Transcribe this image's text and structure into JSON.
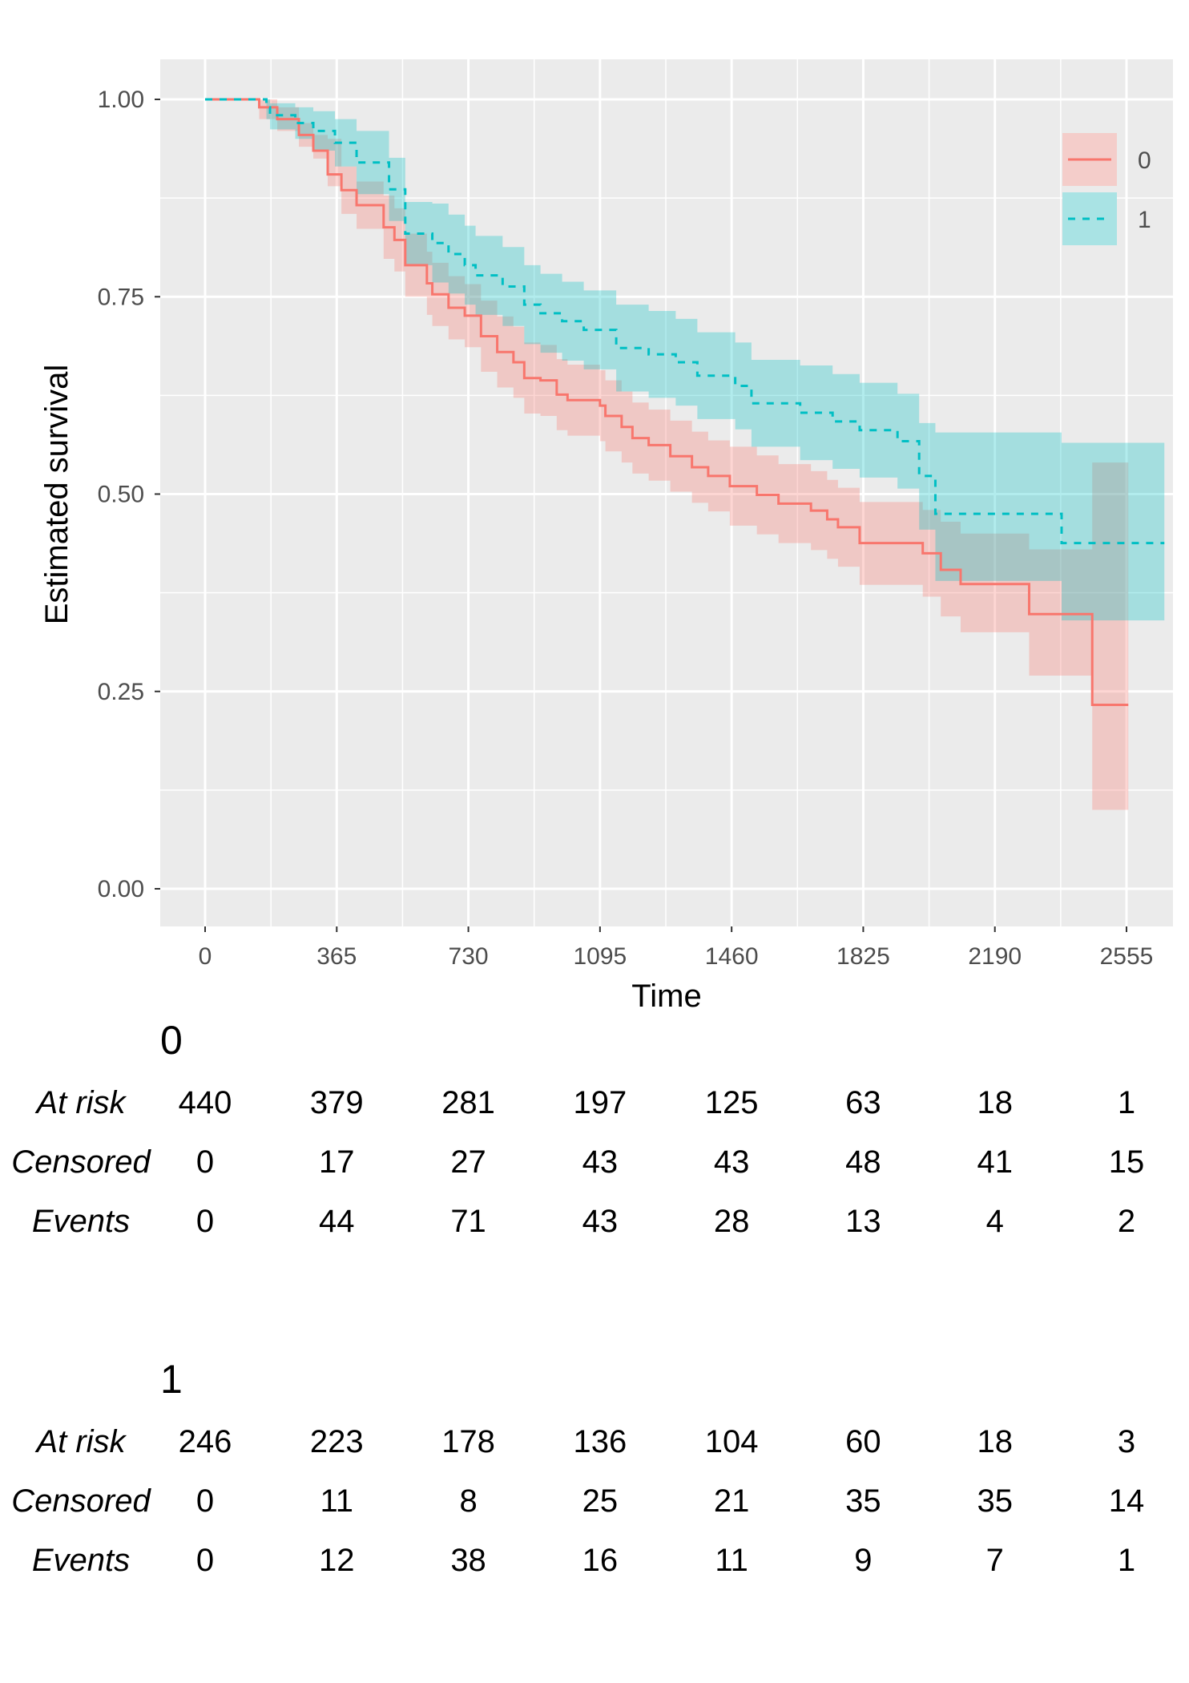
{
  "chart_data": {
    "type": "line",
    "subtype": "kaplan-meier step curves with confidence bands",
    "xlabel": "Time",
    "ylabel": "Estimated survival",
    "xlim": [
      -130,
      2700
    ],
    "ylim": [
      -0.05,
      1.05
    ],
    "x_ticks": [
      "0",
      "365",
      "730",
      "1095",
      "1460",
      "1825",
      "2190",
      "2555"
    ],
    "x_tick_values": [
      0,
      365,
      730,
      1095,
      1460,
      1825,
      2190,
      2555
    ],
    "y_ticks": [
      "0.00",
      "0.25",
      "0.50",
      "0.75",
      "1.00"
    ],
    "y_tick_values": [
      0,
      0.25,
      0.5,
      0.75,
      1.0
    ],
    "grid": true,
    "background": "#EBEBEB",
    "legend": {
      "placement": "top-right",
      "entries": [
        "0",
        "1"
      ]
    },
    "series": [
      {
        "name": "0",
        "color": "#F8766D",
        "linestyle": "solid",
        "time": [
          0,
          150,
          200,
          260,
          300,
          340,
          378,
          420,
          495,
          525,
          555,
          615,
          630,
          675,
          720,
          765,
          810,
          855,
          885,
          930,
          975,
          1005,
          1095,
          1110,
          1155,
          1185,
          1230,
          1290,
          1350,
          1395,
          1455,
          1530,
          1590,
          1680,
          1725,
          1755,
          1815,
          1990,
          2040,
          2095,
          2285,
          2460
        ],
        "end_time": 2560,
        "survival": [
          1,
          0.99,
          0.975,
          0.955,
          0.935,
          0.905,
          0.885,
          0.866,
          0.838,
          0.822,
          0.79,
          0.767,
          0.753,
          0.736,
          0.726,
          0.7,
          0.68,
          0.667,
          0.647,
          0.644,
          0.626,
          0.619,
          0.612,
          0.599,
          0.585,
          0.571,
          0.562,
          0.548,
          0.534,
          0.523,
          0.51,
          0.499,
          0.488,
          0.479,
          0.468,
          0.458,
          0.438,
          0.425,
          0.404,
          0.386,
          0.348,
          0.233
        ],
        "lower": [
          1,
          0.975,
          0.96,
          0.94,
          0.925,
          0.89,
          0.855,
          0.836,
          0.798,
          0.782,
          0.75,
          0.727,
          0.713,
          0.696,
          0.686,
          0.655,
          0.635,
          0.622,
          0.602,
          0.599,
          0.581,
          0.574,
          0.567,
          0.554,
          0.54,
          0.526,
          0.517,
          0.503,
          0.489,
          0.478,
          0.46,
          0.449,
          0.438,
          0.429,
          0.418,
          0.408,
          0.385,
          0.37,
          0.345,
          0.325,
          0.27,
          0.1
        ],
        "upper": [
          1,
          1,
          0.99,
          0.97,
          0.955,
          0.95,
          0.915,
          0.896,
          0.878,
          0.862,
          0.83,
          0.807,
          0.793,
          0.776,
          0.766,
          0.745,
          0.725,
          0.712,
          0.692,
          0.689,
          0.671,
          0.664,
          0.657,
          0.644,
          0.63,
          0.616,
          0.607,
          0.593,
          0.579,
          0.568,
          0.56,
          0.549,
          0.538,
          0.529,
          0.518,
          0.508,
          0.49,
          0.48,
          0.465,
          0.45,
          0.43,
          0.54
        ]
      },
      {
        "name": "1",
        "color": "#00BFC4",
        "linestyle": "dashed",
        "time": [
          0,
          170,
          180,
          250,
          300,
          360,
          420,
          510,
          555,
          630,
          675,
          720,
          750,
          825,
          885,
          930,
          990,
          1050,
          1140,
          1230,
          1305,
          1365,
          1470,
          1515,
          1650,
          1740,
          1815,
          1920,
          1980,
          2025,
          2375
        ],
        "end_time": 2660,
        "survival": [
          1,
          0.99,
          0.98,
          0.97,
          0.96,
          0.945,
          0.92,
          0.886,
          0.83,
          0.818,
          0.804,
          0.79,
          0.777,
          0.763,
          0.74,
          0.729,
          0.719,
          0.708,
          0.685,
          0.677,
          0.667,
          0.65,
          0.637,
          0.615,
          0.603,
          0.592,
          0.581,
          0.567,
          0.523,
          0.475,
          0.438
        ],
        "lower": [
          1,
          0.975,
          0.962,
          0.95,
          0.935,
          0.915,
          0.88,
          0.846,
          0.79,
          0.768,
          0.754,
          0.74,
          0.727,
          0.713,
          0.69,
          0.679,
          0.669,
          0.658,
          0.63,
          0.622,
          0.612,
          0.595,
          0.582,
          0.56,
          0.543,
          0.532,
          0.521,
          0.507,
          0.455,
          0.39,
          0.34
        ],
        "upper": [
          1,
          1,
          0.995,
          0.99,
          0.985,
          0.975,
          0.96,
          0.926,
          0.87,
          0.868,
          0.854,
          0.84,
          0.827,
          0.813,
          0.79,
          0.779,
          0.769,
          0.758,
          0.74,
          0.732,
          0.722,
          0.705,
          0.692,
          0.67,
          0.663,
          0.652,
          0.641,
          0.627,
          0.59,
          0.578,
          0.565
        ]
      }
    ]
  },
  "risk_tables": [
    {
      "title": "0",
      "rows": [
        {
          "label": "At risk",
          "values": [
            "440",
            "379",
            "281",
            "197",
            "125",
            "63",
            "18",
            "1"
          ]
        },
        {
          "label": "Censored",
          "values": [
            "0",
            "17",
            "27",
            "43",
            "43",
            "48",
            "41",
            "15"
          ]
        },
        {
          "label": "Events",
          "values": [
            "0",
            "44",
            "71",
            "43",
            "28",
            "13",
            "4",
            "2"
          ]
        }
      ]
    },
    {
      "title": "1",
      "rows": [
        {
          "label": "At risk",
          "values": [
            "246",
            "223",
            "178",
            "136",
            "104",
            "60",
            "18",
            "3"
          ]
        },
        {
          "label": "Censored",
          "values": [
            "0",
            "11",
            "8",
            "25",
            "21",
            "35",
            "35",
            "14"
          ]
        },
        {
          "label": "Events",
          "values": [
            "0",
            "12",
            "38",
            "16",
            "11",
            "9",
            "7",
            "1"
          ]
        }
      ]
    }
  ]
}
